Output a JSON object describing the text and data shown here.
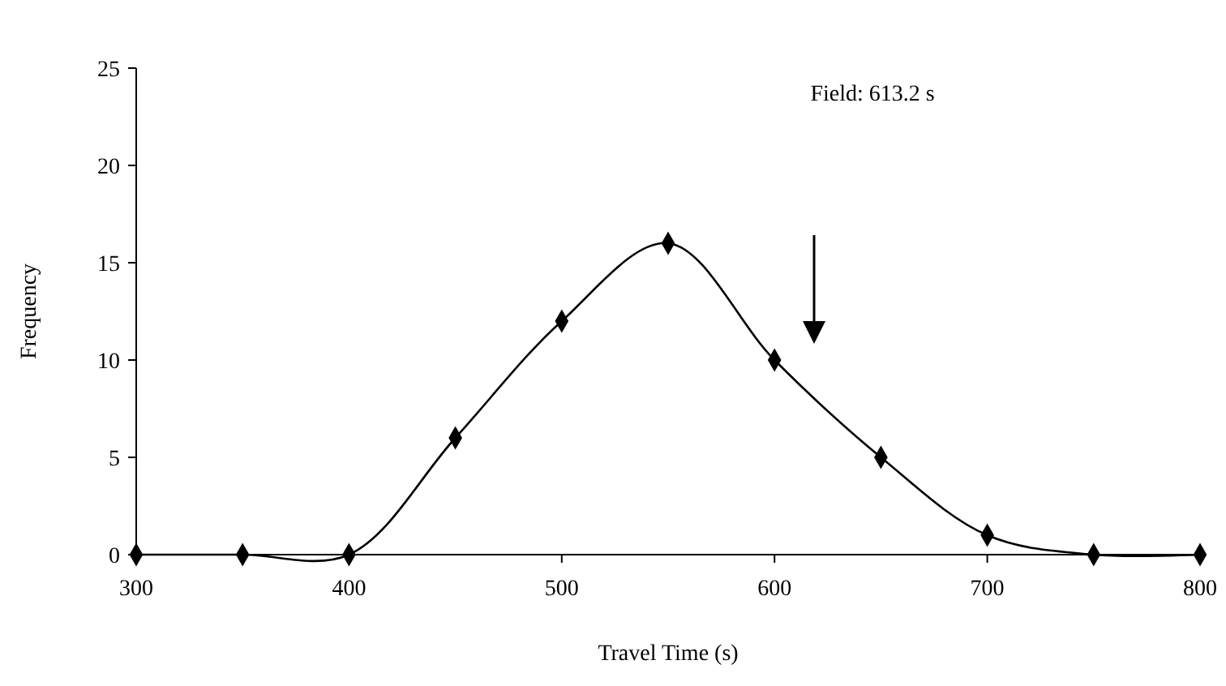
{
  "chart_data": {
    "type": "line",
    "xlabel": "Travel Time (s)",
    "ylabel": "Frequency",
    "x": [
      300,
      350,
      400,
      450,
      500,
      550,
      600,
      650,
      700,
      750,
      800
    ],
    "series": [
      {
        "color": "#000000",
        "values": [
          0,
          0,
          0,
          6,
          12,
          16,
          10,
          5,
          1,
          0,
          0
        ]
      }
    ],
    "xlim": [
      300,
      800
    ],
    "xticks": [
      300,
      400,
      500,
      600,
      700,
      800
    ],
    "ylim": [
      0,
      25
    ],
    "yticks": [
      0,
      5,
      10,
      15,
      20,
      25
    ],
    "grid": false,
    "marker": "diamond",
    "line_style": "solid",
    "annotations": [
      "Field: 613.2 s"
    ]
  }
}
